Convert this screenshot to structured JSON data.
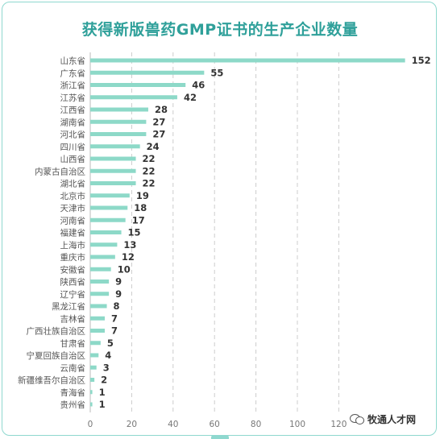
{
  "chart_data": {
    "type": "bar",
    "orientation": "horizontal",
    "title": "获得新版兽药GMP证书的生产企业数量",
    "categories": [
      "山东省",
      "广东省",
      "浙江省",
      "江苏省",
      "江西省",
      "湖南省",
      "河北省",
      "四川省",
      "山西省",
      "内蒙古自治区",
      "湖北省",
      "北京市",
      "天津市",
      "河南省",
      "福建省",
      "上海市",
      "重庆市",
      "安徽省",
      "陕西省",
      "辽宁省",
      "黑龙江省",
      "吉林省",
      "广西壮族自治区",
      "甘肃省",
      "宁夏回族自治区",
      "云南省",
      "新疆维吾尔自治区",
      "青海省",
      "贵州省"
    ],
    "values": [
      152,
      55,
      46,
      42,
      28,
      27,
      27,
      24,
      22,
      22,
      22,
      19,
      18,
      17,
      15,
      13,
      12,
      10,
      9,
      9,
      8,
      7,
      7,
      5,
      4,
      3,
      2,
      1,
      1
    ],
    "xlim": [
      0,
      160
    ],
    "xticks": [
      0,
      20,
      40,
      60,
      80,
      100,
      120
    ],
    "grid": true,
    "bar_color": "#8dd9c8",
    "title_color": "#2fa09a"
  },
  "watermark": {
    "text": "牧通人才网",
    "icon": "wechat-icon"
  }
}
